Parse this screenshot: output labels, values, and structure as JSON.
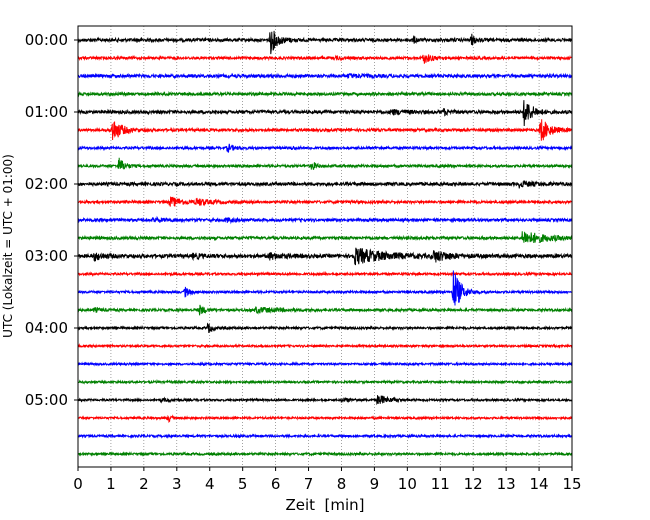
{
  "chart_data": {
    "type": "line",
    "title": "",
    "xlabel": "Zeit  [min]",
    "ylabel": "UTC (Lokalzeit = UTC + 01:00)",
    "xlim": [
      0,
      15
    ],
    "x_ticks": [
      "0",
      "1",
      "2",
      "3",
      "4",
      "5",
      "6",
      "7",
      "8",
      "9",
      "10",
      "11",
      "12",
      "13",
      "14",
      "15"
    ],
    "y_tick_labels": [
      "00:00",
      "01:00",
      "02:00",
      "03:00",
      "04:00",
      "05:00"
    ],
    "grid": "vertical dotted lines at each minute",
    "row_color_cycle": [
      "#000000",
      "#ff0000",
      "#0000ff",
      "#008000"
    ],
    "trace_interval_min": 15,
    "rows": 24,
    "row_start_times": [
      "00:00",
      "00:15",
      "00:30",
      "00:45",
      "01:00",
      "01:15",
      "01:30",
      "01:45",
      "02:00",
      "02:15",
      "02:30",
      "02:45",
      "03:00",
      "03:15",
      "03:30",
      "03:45",
      "04:00",
      "04:15",
      "04:30",
      "04:45",
      "05:00",
      "05:15",
      "05:30",
      "05:45"
    ],
    "row_noise_amplitude": [
      1.6,
      1.3,
      1.6,
      1.4,
      1.6,
      1.4,
      1.2,
      1.2,
      1.6,
      1.3,
      1.4,
      1.4,
      1.8,
      1.1,
      1.1,
      1.2,
      1.1,
      1.0,
      1.0,
      1.0,
      1.0,
      1.0,
      1.1,
      1.1
    ],
    "events": [
      {
        "row": 0,
        "t": 5.85,
        "amp": 13,
        "dur": 0.45
      },
      {
        "row": 0,
        "t": 10.2,
        "amp": 3,
        "dur": 0.2
      },
      {
        "row": 0,
        "t": 11.95,
        "amp": 5,
        "dur": 0.3
      },
      {
        "row": 0,
        "t": 1.8,
        "amp": 1.5,
        "dur": 0.2
      },
      {
        "row": 1,
        "t": 10.5,
        "amp": 5,
        "dur": 0.5
      },
      {
        "row": 1,
        "t": 7.8,
        "amp": 1.5,
        "dur": 0.5
      },
      {
        "row": 2,
        "t": 8.2,
        "amp": 1.5,
        "dur": 1.0
      },
      {
        "row": 4,
        "t": 13.55,
        "amp": 14,
        "dur": 0.5
      },
      {
        "row": 4,
        "t": 11.1,
        "amp": 3,
        "dur": 0.3
      },
      {
        "row": 4,
        "t": 9.5,
        "amp": 2,
        "dur": 1.2
      },
      {
        "row": 5,
        "t": 1.05,
        "amp": 12,
        "dur": 0.55
      },
      {
        "row": 5,
        "t": 14.05,
        "amp": 12,
        "dur": 0.6
      },
      {
        "row": 6,
        "t": 4.55,
        "amp": 4,
        "dur": 0.35
      },
      {
        "row": 6,
        "t": 6.5,
        "amp": 1.5,
        "dur": 0.3
      },
      {
        "row": 7,
        "t": 1.25,
        "amp": 8,
        "dur": 0.35
      },
      {
        "row": 7,
        "t": 7.1,
        "amp": 4,
        "dur": 0.3
      },
      {
        "row": 8,
        "t": 13.4,
        "amp": 3,
        "dur": 0.8
      },
      {
        "row": 9,
        "t": 2.8,
        "amp": 5,
        "dur": 0.8
      },
      {
        "row": 9,
        "t": 3.6,
        "amp": 3,
        "dur": 0.8
      },
      {
        "row": 10,
        "t": 2.3,
        "amp": 2,
        "dur": 0.8
      },
      {
        "row": 10,
        "t": 4.5,
        "amp": 2,
        "dur": 0.5
      },
      {
        "row": 11,
        "t": 13.5,
        "amp": 7,
        "dur": 1.4
      },
      {
        "row": 12,
        "t": 8.4,
        "amp": 8,
        "dur": 1.9
      },
      {
        "row": 12,
        "t": 10.8,
        "amp": 5,
        "dur": 1.0
      },
      {
        "row": 12,
        "t": 0.5,
        "amp": 4,
        "dur": 0.6
      },
      {
        "row": 12,
        "t": 3.5,
        "amp": 2,
        "dur": 0.6
      },
      {
        "row": 12,
        "t": 5.8,
        "amp": 3,
        "dur": 0.8
      },
      {
        "row": 14,
        "t": 11.4,
        "amp": 24,
        "dur": 0.45
      },
      {
        "row": 14,
        "t": 3.25,
        "amp": 5,
        "dur": 0.3
      },
      {
        "row": 15,
        "t": 3.7,
        "amp": 5,
        "dur": 0.3
      },
      {
        "row": 15,
        "t": 5.4,
        "amp": 2.5,
        "dur": 1.8
      },
      {
        "row": 15,
        "t": 0.5,
        "amp": 2,
        "dur": 0.4
      },
      {
        "row": 16,
        "t": 3.95,
        "amp": 5,
        "dur": 0.3
      },
      {
        "row": 20,
        "t": 9.1,
        "amp": 5,
        "dur": 0.7
      },
      {
        "row": 20,
        "t": 8.0,
        "amp": 2,
        "dur": 0.6
      },
      {
        "row": 20,
        "t": 2.5,
        "amp": 1.5,
        "dur": 0.8
      },
      {
        "row": 21,
        "t": 2.75,
        "amp": 3.5,
        "dur": 0.2
      }
    ]
  }
}
